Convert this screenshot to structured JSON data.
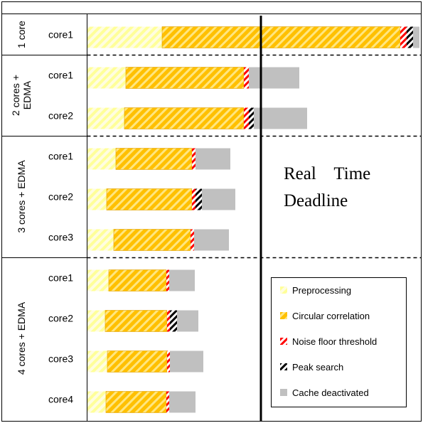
{
  "chart_data": {
    "type": "bar",
    "orientation": "horizontal-stacked",
    "groups": [
      {
        "name": "1 core",
        "cores": [
          "core1"
        ]
      },
      {
        "name": "2 cores +\nEDMA",
        "cores": [
          "core1",
          "core2"
        ]
      },
      {
        "name": "3 cores + EDMA",
        "cores": [
          "core1",
          "core2",
          "core3"
        ]
      },
      {
        "name": "4 cores + EDMA",
        "cores": [
          "core1",
          "core2",
          "core3",
          "core4"
        ]
      }
    ],
    "categories": [
      "1 core - core1",
      "2 cores + EDMA - core1",
      "2 cores + EDMA - core2",
      "3 cores + EDMA - core1",
      "3 cores + EDMA - core2",
      "3 cores + EDMA - core3",
      "4 cores + EDMA - core1",
      "4 cores + EDMA - core2",
      "4 cores + EDMA - core3",
      "4 cores + EDMA - core4"
    ],
    "series": [
      {
        "name": "Preprocessing",
        "color": "#ffff99",
        "pattern": "hatch-light",
        "values": [
          105,
          54,
          52,
          40,
          27,
          37,
          30,
          25,
          28,
          26
        ]
      },
      {
        "name": "Circular correlation",
        "color": "#ffc000",
        "pattern": "hatch-orange",
        "values": [
          335,
          166,
          168,
          107,
          120,
          108,
          81,
          87,
          84,
          85
        ]
      },
      {
        "name": "Noise floor threshold",
        "color": "#ff0000",
        "pattern": "hatch-red",
        "values": [
          9,
          7,
          7,
          5,
          5,
          5,
          4,
          4,
          4,
          4
        ]
      },
      {
        "name": "Peak search",
        "color": "#000000",
        "pattern": "hatch-black",
        "values": [
          9,
          0,
          7,
          0,
          9,
          0,
          0,
          10,
          0,
          0
        ]
      },
      {
        "name": "Cache deactivated",
        "color": "#c0c0c0",
        "pattern": "solid",
        "values": [
          9,
          71,
          75,
          49,
          47,
          49,
          36,
          30,
          47,
          37
        ]
      }
    ],
    "xlim": [
      0,
      472
    ],
    "deadline": {
      "value": 244,
      "label_line1": "Real    Time",
      "label_line2": "Deadline"
    },
    "legend": {
      "position": "bottom-right"
    },
    "grid": false
  }
}
